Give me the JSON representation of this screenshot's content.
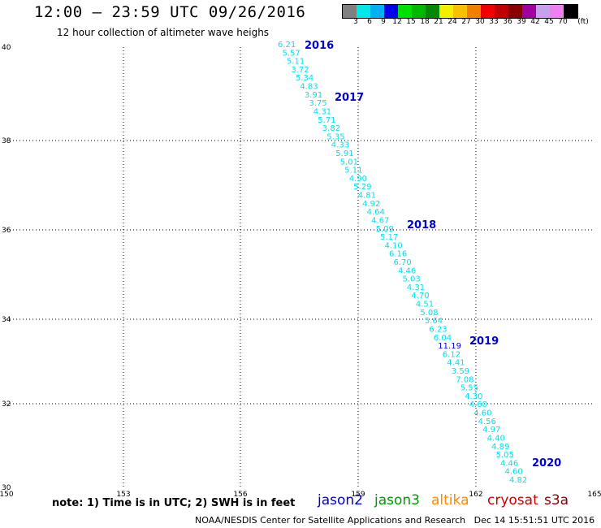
{
  "header": {
    "title": "12:00 — 23:59 UTC 09/26/2016",
    "subtitle": "12 hour collection of altimeter wave heighs"
  },
  "colorbar": {
    "unit": "(ft)",
    "colors": [
      "#808080",
      "#00e8e8",
      "#00b0f0",
      "#0000f0",
      "#00e000",
      "#00b800",
      "#008800",
      "#f0f000",
      "#f8c000",
      "#f08000",
      "#f00000",
      "#c00000",
      "#880000",
      "#a000a0",
      "#c8a0f0",
      "#f080f0",
      "#000000"
    ],
    "labels": [
      "3",
      "6",
      "9",
      "12",
      "15",
      "18",
      "21",
      "24",
      "27",
      "30",
      "33",
      "36",
      "39",
      "42",
      "45",
      "70"
    ]
  },
  "map": {
    "lat_ticks": [
      "40",
      "38",
      "36",
      "34",
      "32",
      "30"
    ],
    "lon_ticks": [
      "150",
      "153",
      "156",
      "159",
      "162",
      "165"
    ],
    "track_color": "#00e0f0",
    "highlight_color": "#0000cc",
    "swh_values": [
      "6.21",
      "5.57",
      "5.11",
      "3.72",
      "5.34",
      "4.83",
      "3.91",
      "3.75",
      "4.31",
      "5.71",
      "3.82",
      "5.35",
      "4.33",
      "5.91",
      "5.01",
      "5.11",
      "4.90",
      "5.29",
      "4.81",
      "4.92",
      "4.64",
      "4.67",
      "5.09",
      "5.17",
      "4.10",
      "6.16",
      "6.70",
      "4.46",
      "5.03",
      "4.31",
      "4.70",
      "4.51",
      "5.08",
      "5.64",
      "6.23",
      "6.04",
      "11.19",
      "6.12",
      "4.41",
      "3.59",
      "7.08",
      "5.55",
      "4.30",
      "4.60",
      "4.60",
      "4.56",
      "4.97",
      "4.40",
      "4.89",
      "5.05",
      "4.46",
      "4.60",
      "4.82"
    ],
    "hour_labels": [
      "2016",
      "2017",
      "2018",
      "2019",
      "2020"
    ]
  },
  "footer": {
    "note": "note: 1) Time is in UTC; 2) SWH is in feet",
    "satellites": [
      {
        "name": "jason2",
        "color": "#0000cc"
      },
      {
        "name": "jason3",
        "color": "#009900"
      },
      {
        "name": "altika",
        "color": "#ff8800"
      },
      {
        "name": "cryosat",
        "color": "#cc0000"
      },
      {
        "name": "s3a",
        "color": "#880000"
      }
    ],
    "credit": "NOAA/NESDIS Center for Satellite Applications and Research",
    "timestamp": "Dec 14 15:51:51 UTC 2016"
  }
}
